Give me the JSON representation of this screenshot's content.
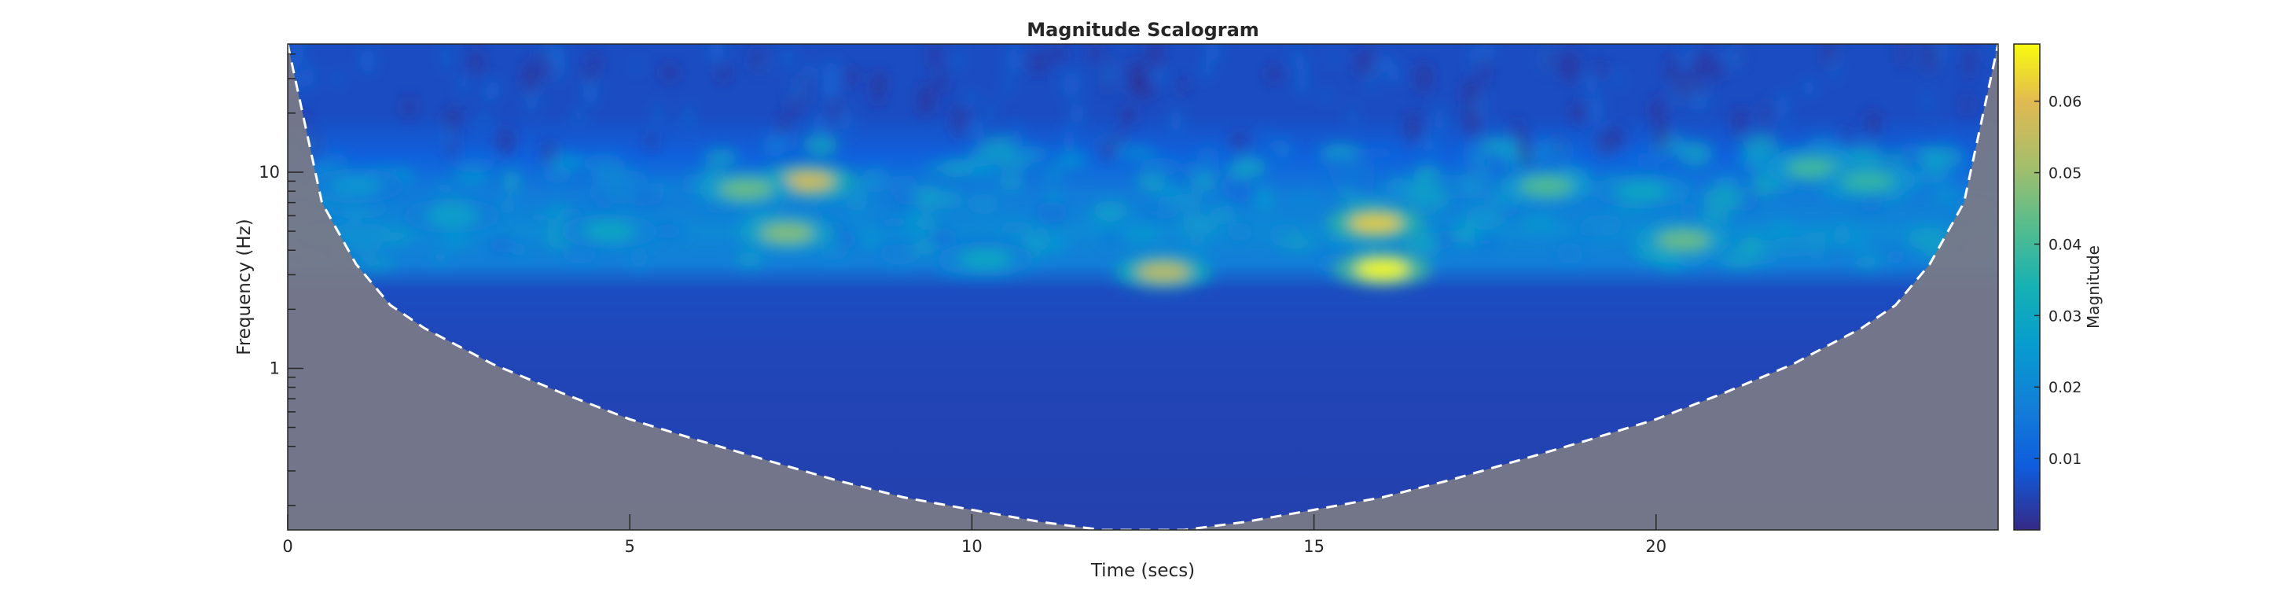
{
  "chart_data": {
    "type": "heatmap",
    "title": "Magnitude Scalogram",
    "xlabel": "Time (secs)",
    "ylabel": "Frequency (Hz)",
    "xlim": [
      0,
      25
    ],
    "ylim_hz": [
      0.15,
      45
    ],
    "y_scale": "log",
    "x_ticks": [
      0,
      5,
      10,
      15,
      20
    ],
    "x_tick_labels": [
      "0",
      "5",
      "10",
      "15",
      "20"
    ],
    "y_ticks": [
      1,
      10
    ],
    "y_tick_labels": [
      "1",
      "10"
    ],
    "colorbar": {
      "label": "Magnitude",
      "range": [
        0,
        0.068
      ],
      "ticks": [
        0.01,
        0.02,
        0.03,
        0.04,
        0.05,
        0.06
      ],
      "tick_labels": [
        "0.01",
        "0.02",
        "0.03",
        "0.04",
        "0.05",
        "0.06"
      ],
      "colormap": "parula"
    },
    "cone_of_influence": {
      "t": [
        0,
        0.5,
        1,
        1.5,
        2,
        3,
        4,
        5,
        6,
        7,
        8,
        9,
        10,
        11,
        11.9,
        13.1,
        14,
        15,
        16,
        17,
        18,
        19,
        20,
        21,
        22,
        22.5,
        23,
        23.5,
        24,
        24.5,
        25
      ],
      "freq_hz": [
        45,
        7,
        3.4,
        2.1,
        1.6,
        1.05,
        0.75,
        0.55,
        0.43,
        0.34,
        0.27,
        0.22,
        0.19,
        0.165,
        0.15,
        0.15,
        0.165,
        0.19,
        0.22,
        0.27,
        0.34,
        0.43,
        0.55,
        0.75,
        1.05,
        1.3,
        1.6,
        2.1,
        3.4,
        7,
        45
      ],
      "style": "white-dashed"
    },
    "peaks": [
      {
        "t": 16,
        "freq_hz": 3.2,
        "magnitude": 0.068
      },
      {
        "t": 15.9,
        "freq_hz": 5.5,
        "magnitude": 0.062
      },
      {
        "t": 12.8,
        "freq_hz": 3.1,
        "magnitude": 0.055
      },
      {
        "t": 7.6,
        "freq_hz": 9.0,
        "magnitude": 0.058
      },
      {
        "t": 7.3,
        "freq_hz": 4.9,
        "magnitude": 0.048
      },
      {
        "t": 6.7,
        "freq_hz": 8.2,
        "magnitude": 0.045
      },
      {
        "t": 20.4,
        "freq_hz": 4.5,
        "magnitude": 0.045
      },
      {
        "t": 18.4,
        "freq_hz": 8.5,
        "magnitude": 0.042
      },
      {
        "t": 22.3,
        "freq_hz": 10.5,
        "magnitude": 0.04
      },
      {
        "t": 23.1,
        "freq_hz": 9.0,
        "magnitude": 0.038
      },
      {
        "t": 4.7,
        "freq_hz": 5.0,
        "magnitude": 0.03
      },
      {
        "t": 2.4,
        "freq_hz": 6.0,
        "magnitude": 0.028
      },
      {
        "t": 10.2,
        "freq_hz": 3.6,
        "magnitude": 0.03
      },
      {
        "t": 19.8,
        "freq_hz": 8.0,
        "magnitude": 0.03
      },
      {
        "t": 1.0,
        "freq_hz": 8.5,
        "magnitude": 0.025
      }
    ],
    "band_profile": [
      {
        "freq_hz": 45,
        "magnitude": 0.006
      },
      {
        "freq_hz": 20,
        "magnitude": 0.006
      },
      {
        "freq_hz": 12,
        "magnitude": 0.01
      },
      {
        "freq_hz": 8,
        "magnitude": 0.016
      },
      {
        "freq_hz": 5,
        "magnitude": 0.02
      },
      {
        "freq_hz": 3.4,
        "magnitude": 0.017
      },
      {
        "freq_hz": 2.5,
        "magnitude": 0.006
      },
      {
        "freq_hz": 1.2,
        "magnitude": 0.005
      },
      {
        "freq_hz": 0.5,
        "magnitude": 0.0045
      },
      {
        "freq_hz": 0.15,
        "magnitude": 0.004
      }
    ],
    "grid": false
  }
}
